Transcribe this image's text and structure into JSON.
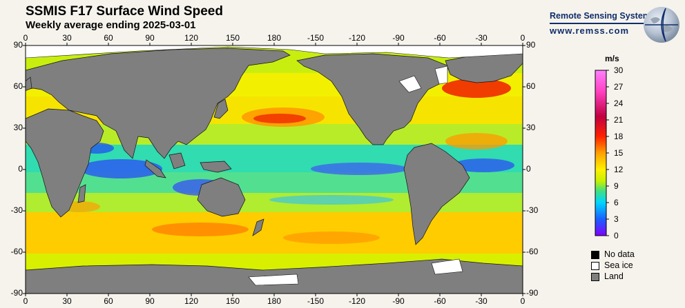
{
  "header": {
    "title": "SSMIS F17 Surface Wind Speed",
    "subtitle": "Weekly average ending 2025-03-01"
  },
  "brand": {
    "name": "Remote Sensing Systems",
    "url": "www.remss.com"
  },
  "map": {
    "lon_ticks": [
      "0",
      "30",
      "60",
      "90",
      "120",
      "150",
      "180",
      "-150",
      "-120",
      "-90",
      "-60",
      "-30",
      "0"
    ],
    "lat_ticks": [
      "90",
      "60",
      "30",
      "0",
      "-30",
      "-60",
      "-90"
    ],
    "colors": {
      "land": "#7f7f7f",
      "sea_ice": "#ffffff",
      "no_data": "#000000"
    }
  },
  "colorbar": {
    "unit": "m/s",
    "ticks": [
      "30",
      "27",
      "24",
      "21",
      "18",
      "15",
      "12",
      "9",
      "6",
      "3",
      "0"
    ],
    "stops": [
      "#8000ff",
      "#1a5fff",
      "#00d6ff",
      "#40e080",
      "#c8f000",
      "#fff000",
      "#ffa000",
      "#ff2000",
      "#c00040",
      "#ff40c0",
      "#ff80ff"
    ]
  },
  "legend": [
    {
      "label": "No data",
      "color": "#000000"
    },
    {
      "label": "Sea ice",
      "color": "#ffffff"
    },
    {
      "label": "Land",
      "color": "#7f7f7f"
    }
  ]
}
